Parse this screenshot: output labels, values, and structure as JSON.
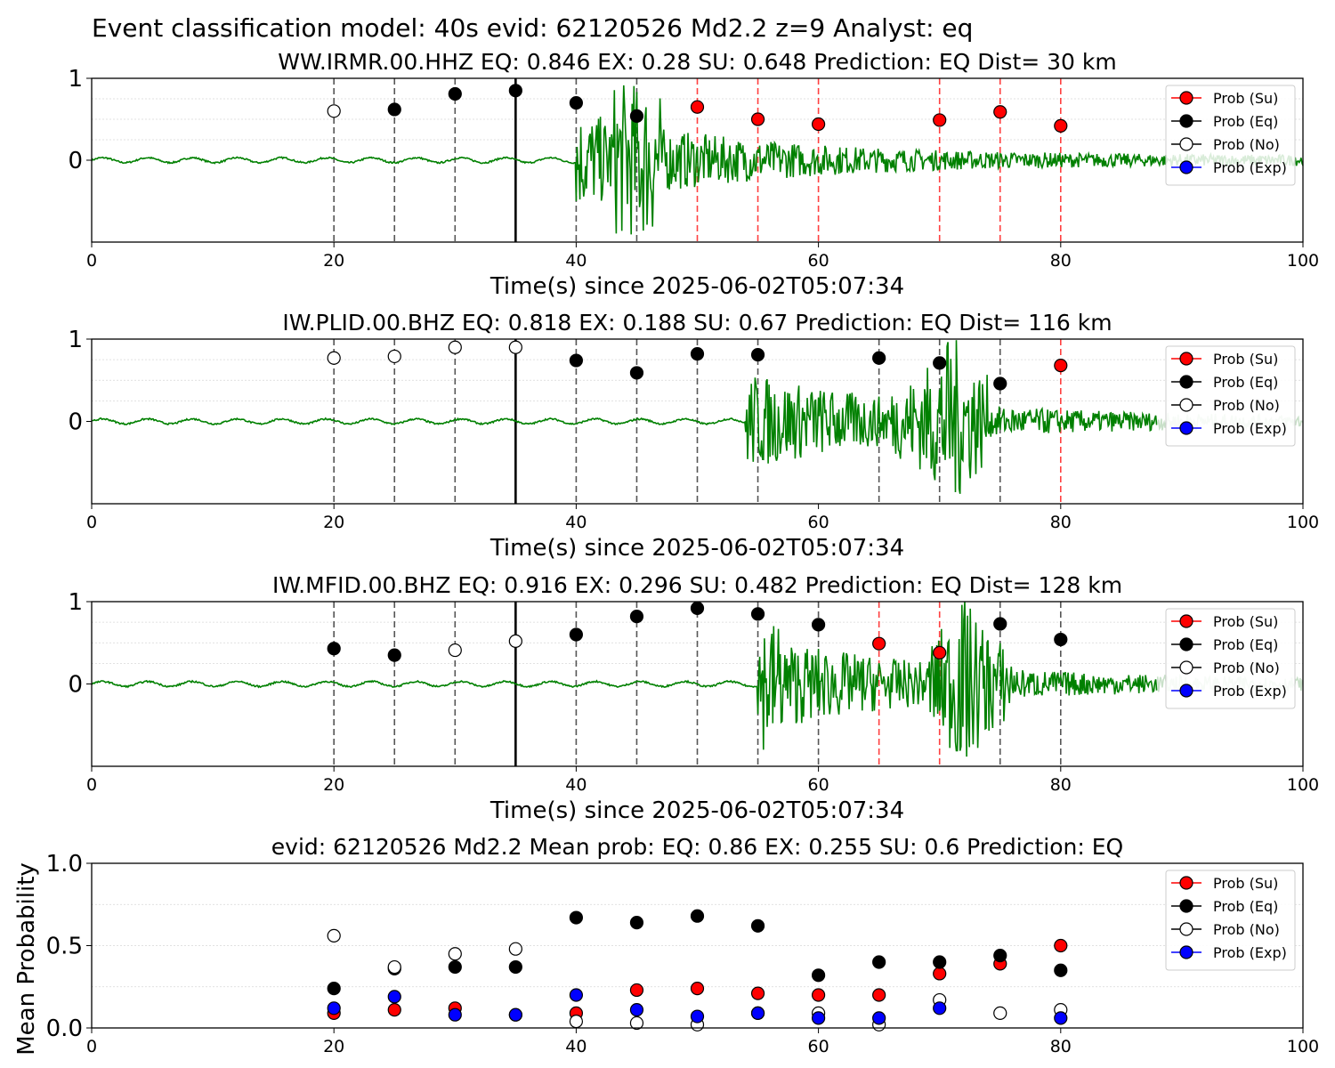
{
  "figure_title": "Event classification model: 40s evid: 62120526 Md2.2 z=9 Analyst: eq",
  "legend": [
    "Prob (Su)",
    "Prob (Eq)",
    "Prob (No)",
    "Prob (Exp)"
  ],
  "colors": {
    "su": "#ff0000",
    "eq": "#000000",
    "no": "#ffffff",
    "exp": "#0000ff",
    "trace": "#008000",
    "trace_faded": "#c8e0c8",
    "red_line": "#ff4040",
    "dash_line": "#555555"
  },
  "chart_data": [
    {
      "type": "scatter",
      "title": "WW.IRMR.00.HHZ   EQ: 0.846  EX: 0.28  SU: 0.648   Prediction: EQ    Dist= 30 km",
      "xlabel": "Time(s) since 2025-06-02T05:07:34",
      "xlim": [
        0,
        100
      ],
      "ylim": [
        -1,
        1
      ],
      "xticks": [
        "0",
        "20",
        "40",
        "60",
        "80",
        "100"
      ],
      "yticks": [
        "1",
        "0"
      ],
      "pick_time": 35,
      "signal_onset": 40,
      "trace_amp": 1.0,
      "fade_from": 101,
      "windows": [
        {
          "t": 20,
          "cls": "no",
          "p": 0.6
        },
        {
          "t": 25,
          "cls": "eq",
          "p": 0.62
        },
        {
          "t": 30,
          "cls": "eq",
          "p": 0.81
        },
        {
          "t": 35,
          "cls": "eq",
          "p": 0.85
        },
        {
          "t": 40,
          "cls": "eq",
          "p": 0.7
        },
        {
          "t": 45,
          "cls": "eq",
          "p": 0.54
        },
        {
          "t": 50,
          "cls": "su",
          "p": 0.65
        },
        {
          "t": 55,
          "cls": "su",
          "p": 0.5
        },
        {
          "t": 60,
          "cls": "su",
          "p": 0.44
        },
        {
          "t": 70,
          "cls": "su",
          "p": 0.49
        },
        {
          "t": 75,
          "cls": "su",
          "p": 0.59
        },
        {
          "t": 80,
          "cls": "su",
          "p": 0.42
        }
      ]
    },
    {
      "type": "scatter",
      "title": "IW.PLID.00.BHZ   EQ: 0.818  EX: 0.188  SU: 0.67   Prediction: EQ    Dist= 116 km",
      "xlabel": "Time(s) since 2025-06-02T05:07:34",
      "xlim": [
        0,
        100
      ],
      "ylim": [
        -1,
        1
      ],
      "xticks": [
        "0",
        "20",
        "40",
        "60",
        "80",
        "100"
      ],
      "yticks": [
        "1",
        "0"
      ],
      "pick_time": 35,
      "signal_onset": 54,
      "trace_amp": 1.0,
      "fade_from": 88,
      "windows": [
        {
          "t": 20,
          "cls": "no",
          "p": 0.77
        },
        {
          "t": 25,
          "cls": "no",
          "p": 0.79
        },
        {
          "t": 30,
          "cls": "no",
          "p": 0.9
        },
        {
          "t": 35,
          "cls": "no",
          "p": 0.9
        },
        {
          "t": 40,
          "cls": "eq",
          "p": 0.74
        },
        {
          "t": 45,
          "cls": "eq",
          "p": 0.59
        },
        {
          "t": 50,
          "cls": "eq",
          "p": 0.82
        },
        {
          "t": 55,
          "cls": "eq",
          "p": 0.81
        },
        {
          "t": 65,
          "cls": "eq",
          "p": 0.77
        },
        {
          "t": 70,
          "cls": "eq",
          "p": 0.71
        },
        {
          "t": 75,
          "cls": "eq",
          "p": 0.46
        },
        {
          "t": 80,
          "cls": "su",
          "p": 0.68
        }
      ]
    },
    {
      "type": "scatter",
      "title": "IW.MFID.00.BHZ   EQ: 0.916  EX: 0.296  SU: 0.482   Prediction: EQ    Dist= 128 km",
      "xlabel": "Time(s) since 2025-06-02T05:07:34",
      "xlim": [
        0,
        100
      ],
      "ylim": [
        -1,
        1
      ],
      "xticks": [
        "0",
        "20",
        "40",
        "60",
        "80",
        "100"
      ],
      "yticks": [
        "1",
        "0"
      ],
      "pick_time": 35,
      "signal_onset": 55,
      "trace_amp": 1.0,
      "fade_from": 88,
      "windows": [
        {
          "t": 20,
          "cls": "eq",
          "p": 0.43
        },
        {
          "t": 25,
          "cls": "eq",
          "p": 0.35
        },
        {
          "t": 30,
          "cls": "no",
          "p": 0.41
        },
        {
          "t": 35,
          "cls": "no",
          "p": 0.52
        },
        {
          "t": 40,
          "cls": "eq",
          "p": 0.6
        },
        {
          "t": 45,
          "cls": "eq",
          "p": 0.82
        },
        {
          "t": 50,
          "cls": "eq",
          "p": 0.92
        },
        {
          "t": 55,
          "cls": "eq",
          "p": 0.85
        },
        {
          "t": 60,
          "cls": "eq",
          "p": 0.72
        },
        {
          "t": 65,
          "cls": "su",
          "p": 0.49
        },
        {
          "t": 70,
          "cls": "su",
          "p": 0.38
        },
        {
          "t": 75,
          "cls": "eq",
          "p": 0.73
        },
        {
          "t": 80,
          "cls": "eq",
          "p": 0.54
        }
      ]
    },
    {
      "type": "scatter",
      "title": "evid: 62120526  Md2.2   Mean prob:   EQ: 0.86  EX: 0.255  SU: 0.6   Prediction: EQ",
      "ylabel": "Mean Probability",
      "xlim": [
        0,
        100
      ],
      "ylim": [
        0,
        1
      ],
      "xticks": [
        "0",
        "20",
        "40",
        "60",
        "80",
        "100"
      ],
      "yticks": [
        "1.0",
        "0.5",
        "0.0"
      ],
      "x": [
        20,
        25,
        30,
        35,
        40,
        45,
        50,
        55,
        60,
        65,
        70,
        75,
        80
      ],
      "series": [
        {
          "name": "Prob (Su)",
          "key": "su",
          "values": [
            0.09,
            0.11,
            0.12,
            0.08,
            0.09,
            0.23,
            0.24,
            0.21,
            0.2,
            0.2,
            0.33,
            0.39,
            0.5
          ]
        },
        {
          "name": "Prob (Eq)",
          "key": "eq",
          "values": [
            0.24,
            0.36,
            0.37,
            0.37,
            0.67,
            0.64,
            0.68,
            0.62,
            0.32,
            0.4,
            0.4,
            0.44,
            0.35
          ]
        },
        {
          "name": "Prob (No)",
          "key": "no",
          "values": [
            0.56,
            0.37,
            0.45,
            0.48,
            0.04,
            0.03,
            0.02,
            0.09,
            0.09,
            0.02,
            0.17,
            0.09,
            0.11
          ]
        },
        {
          "name": "Prob (Exp)",
          "key": "exp",
          "values": [
            0.12,
            0.19,
            0.08,
            0.08,
            0.2,
            0.11,
            0.07,
            0.09,
            0.06,
            0.06,
            0.12,
            null,
            0.06
          ]
        }
      ]
    }
  ]
}
